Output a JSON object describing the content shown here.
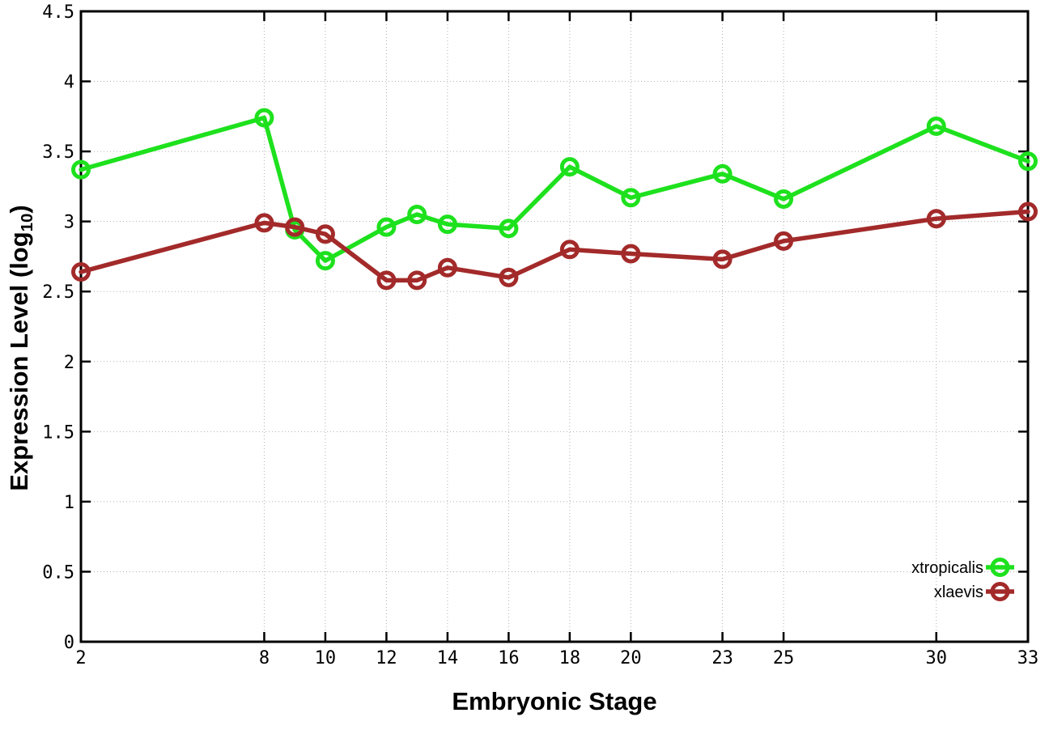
{
  "chart_data": {
    "type": "line",
    "title": "",
    "xlabel": "Embryonic Stage",
    "ylabel": "Expression Level (log10)",
    "ylabel_parts": {
      "main": "Expression Level (log",
      "sub": "10",
      "close": ")"
    },
    "x": [
      2,
      8,
      9,
      10,
      12,
      13,
      14,
      16,
      18,
      20,
      23,
      25,
      30,
      33
    ],
    "x_tick_labels": [
      2,
      8,
      10,
      12,
      14,
      16,
      18,
      20,
      23,
      25,
      30,
      33
    ],
    "xlim": [
      2,
      33
    ],
    "ylim": [
      0,
      4.5
    ],
    "y_tick_step": 0.5,
    "grid": true,
    "legend_position": "inside-bottom-right",
    "series": [
      {
        "name": "xtropicalis",
        "color": "#1ee11e",
        "values": [
          3.37,
          3.74,
          2.94,
          2.72,
          2.96,
          3.05,
          2.98,
          2.95,
          3.39,
          3.17,
          3.34,
          3.16,
          3.68,
          3.43
        ]
      },
      {
        "name": "xlaevis",
        "color": "#a32a2a",
        "values": [
          2.64,
          2.99,
          2.96,
          2.91,
          2.58,
          2.58,
          2.67,
          2.6,
          2.8,
          2.77,
          2.73,
          2.86,
          3.02,
          3.07
        ]
      }
    ]
  },
  "style_colors": {
    "axis": "#000000",
    "grid": "#b0b0b0",
    "background": "#ffffff"
  }
}
